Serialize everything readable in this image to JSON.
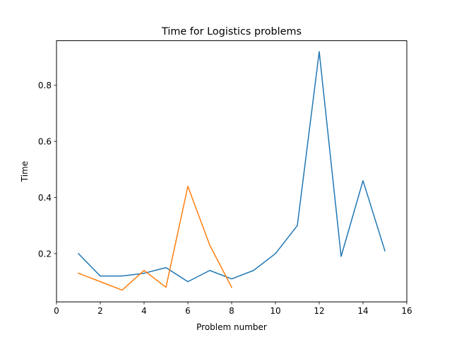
{
  "chart_data": {
    "type": "line",
    "title": "Time for Logistics problems",
    "xlabel": "Problem number",
    "ylabel": "Time",
    "xlim": [
      0,
      16
    ],
    "ylim": [
      0.028,
      0.959
    ],
    "xticks": [
      0,
      2,
      4,
      6,
      8,
      10,
      12,
      14,
      16
    ],
    "yticks": [
      0.2,
      0.4,
      0.6,
      0.8
    ],
    "ytick_labels": [
      "0.2",
      "0.4",
      "0.6",
      "0.8"
    ],
    "grid": false,
    "series": [
      {
        "color": "#1f77b4",
        "x": [
          1,
          2,
          3,
          4,
          5,
          6,
          7,
          8,
          9,
          10,
          11,
          12,
          13,
          14,
          15
        ],
        "values": [
          0.2,
          0.12,
          0.12,
          0.13,
          0.15,
          0.1,
          0.14,
          0.11,
          0.14,
          0.2,
          0.3,
          0.92,
          0.19,
          0.46,
          0.21
        ]
      },
      {
        "color": "#ff7f0e",
        "x": [
          1,
          2,
          3,
          4,
          5,
          6,
          7,
          8
        ],
        "values": [
          0.13,
          0.1,
          0.07,
          0.14,
          0.08,
          0.44,
          0.23,
          0.08
        ]
      }
    ]
  }
}
